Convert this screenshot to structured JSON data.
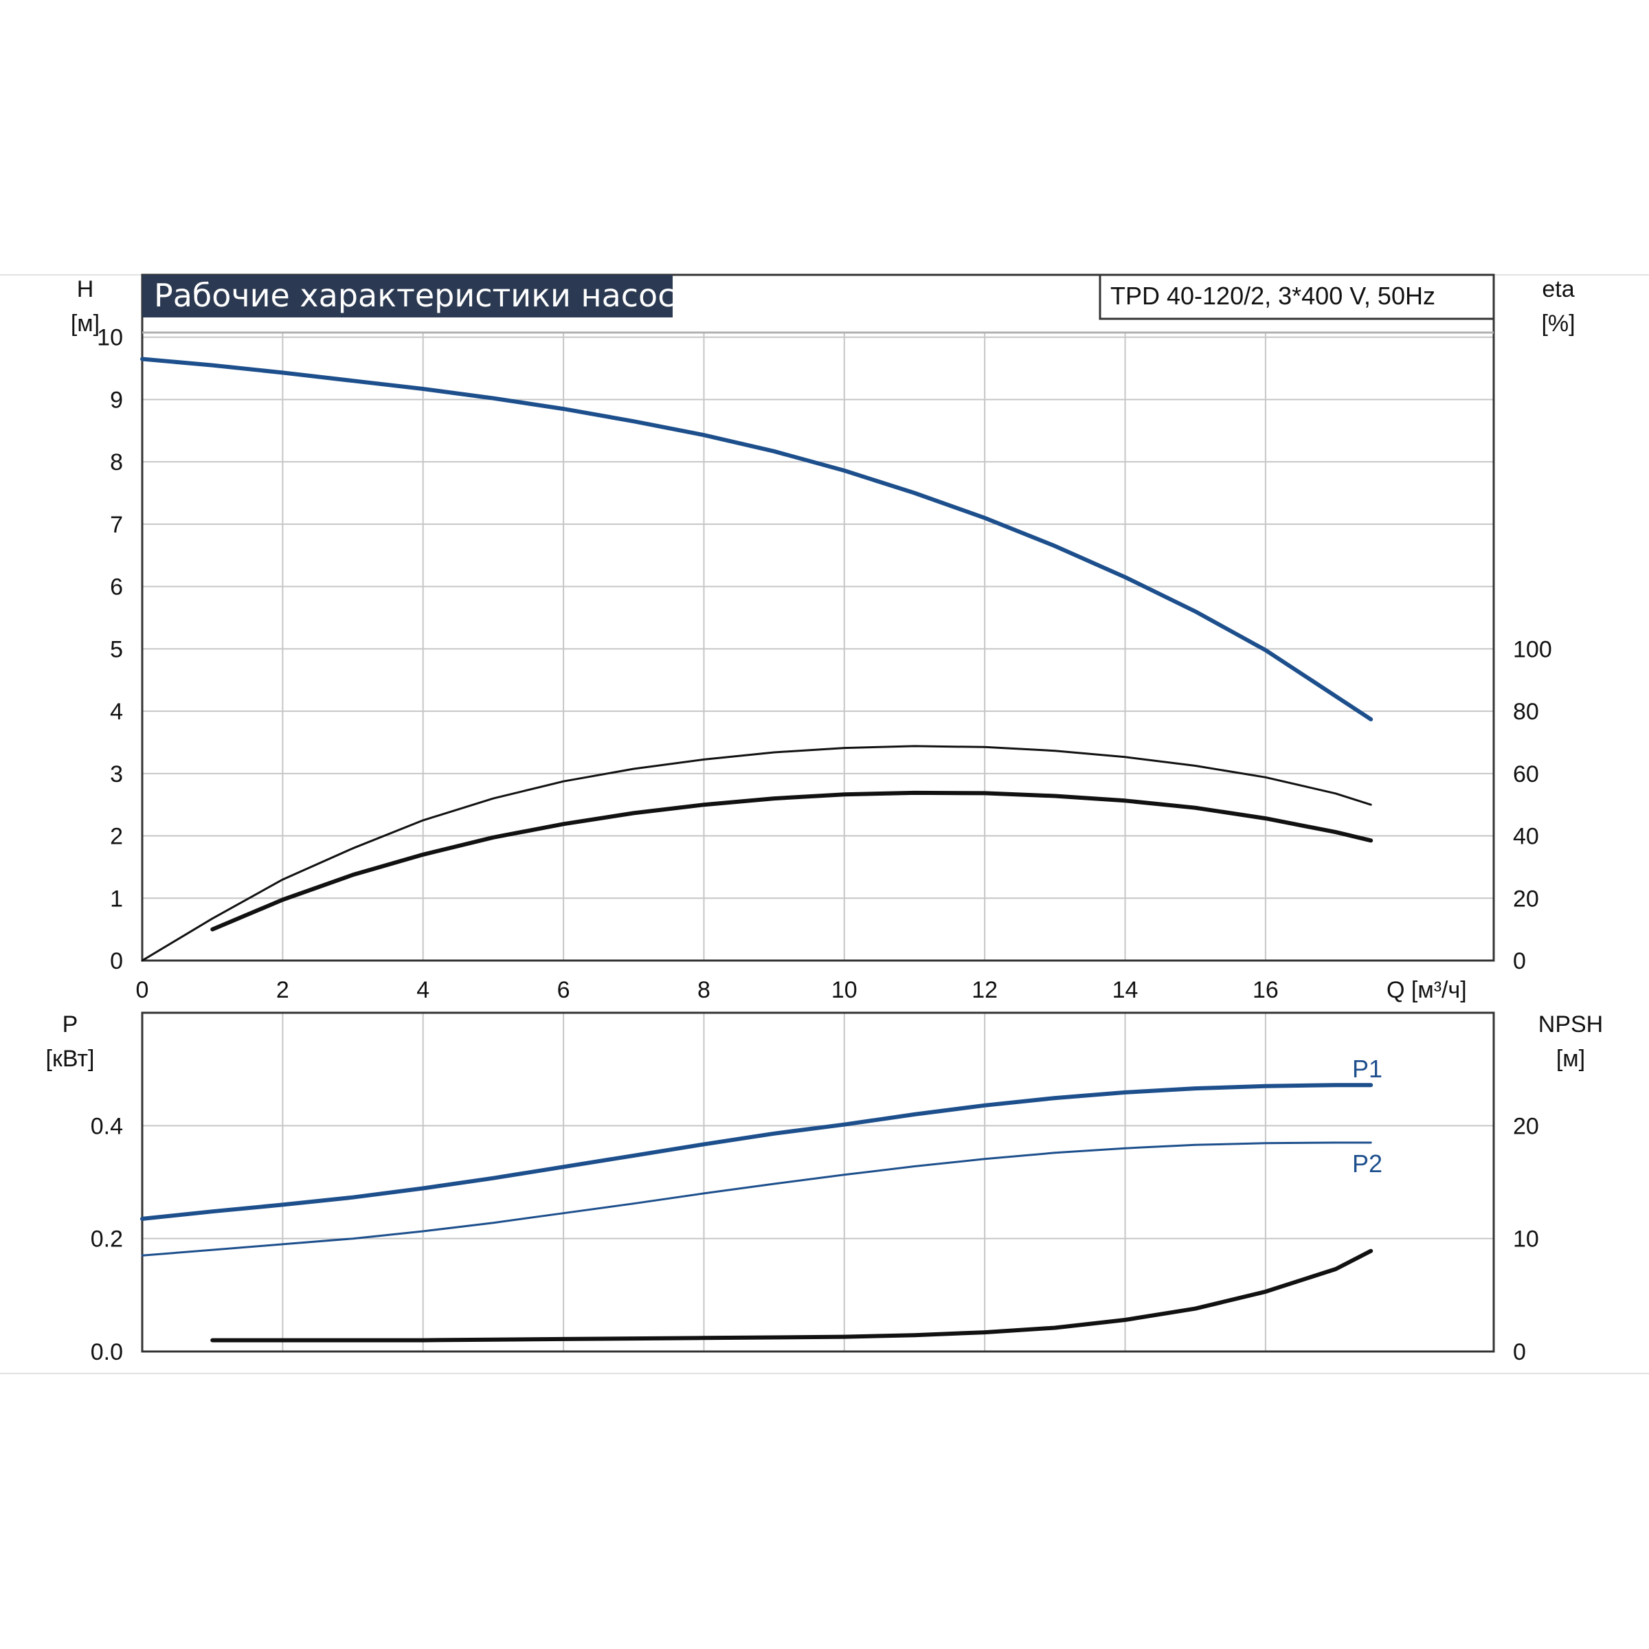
{
  "chart_data": [
    {
      "type": "line",
      "title": "Рабочие характеристики насоса",
      "subtitle": "TPD 40-120/2, 3*400 V, 50Hz",
      "xlabel": "Q [м³/ч]",
      "xlim": [
        0,
        19.25
      ],
      "xticks": [
        0,
        2,
        4,
        6,
        8,
        10,
        12,
        14,
        16
      ],
      "ylabel_left": [
        "H",
        "[м]"
      ],
      "ylim_left": [
        0,
        11
      ],
      "yticks_left": [
        0,
        1,
        2,
        3,
        4,
        5,
        6,
        7,
        8,
        9,
        10
      ],
      "ylabel_right": [
        "eta",
        "[%]"
      ],
      "ylim_right": [
        0,
        220
      ],
      "yticks_right": [
        0,
        20,
        40,
        60,
        80,
        100
      ],
      "grid": true,
      "series": [
        {
          "axis": "left",
          "color": "#1d4f8c",
          "width": 6,
          "x": [
            0,
            1,
            2,
            3,
            4,
            5,
            6,
            7,
            8,
            9,
            10,
            11,
            12,
            13,
            14,
            15,
            16,
            17.5
          ],
          "y": [
            9.65,
            9.55,
            9.43,
            9.3,
            9.17,
            9.02,
            8.85,
            8.65,
            8.43,
            8.17,
            7.86,
            7.5,
            7.1,
            6.65,
            6.15,
            5.6,
            4.98,
            3.87
          ]
        },
        {
          "axis": "right",
          "color": "#111111",
          "width": 3,
          "x": [
            0,
            1,
            2,
            3,
            4,
            5,
            6,
            7,
            8,
            9,
            10,
            11,
            12,
            13,
            14,
            15,
            16,
            17,
            17.5
          ],
          "y": [
            0,
            13.5,
            26,
            36,
            45,
            52,
            57.5,
            61.5,
            64.5,
            66.8,
            68.2,
            68.8,
            68.5,
            67.3,
            65.3,
            62.5,
            58.8,
            53.6,
            50
          ]
        },
        {
          "axis": "right",
          "color": "#111111",
          "width": 6,
          "x": [
            1,
            2,
            3,
            4,
            5,
            6,
            7,
            8,
            9,
            10,
            11,
            12,
            13,
            14,
            15,
            16,
            17,
            17.5
          ],
          "y": [
            10,
            19.5,
            27.5,
            34,
            39.5,
            43.8,
            47.3,
            50,
            52,
            53.3,
            53.8,
            53.7,
            52.8,
            51.3,
            49,
            45.6,
            41.2,
            38.5
          ]
        }
      ]
    },
    {
      "type": "line",
      "xlim": [
        0,
        19.25
      ],
      "xticks": [
        0,
        2,
        4,
        6,
        8,
        10,
        12,
        14,
        16
      ],
      "ylabel_left": [
        "P",
        "[кВт]"
      ],
      "ylim_left": [
        0,
        0.6
      ],
      "yticks_left": [
        "0.0",
        "0.2",
        "0.4"
      ],
      "ylabel_right": [
        "NPSH",
        "[м]"
      ],
      "ylim_right": [
        0,
        30
      ],
      "yticks_right": [
        0,
        10,
        20
      ],
      "grid": true,
      "series": [
        {
          "name": "P1",
          "axis": "left",
          "color": "#1d4f8c",
          "width": 6,
          "x": [
            0,
            1,
            2,
            3,
            4,
            5,
            6,
            7,
            8,
            9,
            10,
            11,
            12,
            13,
            14,
            15,
            16,
            17,
            17.5
          ],
          "y": [
            0.235,
            0.248,
            0.26,
            0.273,
            0.289,
            0.307,
            0.327,
            0.347,
            0.367,
            0.386,
            0.402,
            0.42,
            0.436,
            0.449,
            0.459,
            0.466,
            0.47,
            0.472,
            0.472
          ]
        },
        {
          "name": "P2",
          "axis": "left",
          "color": "#1d4f8c",
          "width": 3,
          "x": [
            0,
            1,
            2,
            3,
            4,
            5,
            6,
            7,
            8,
            9,
            10,
            11,
            12,
            13,
            14,
            15,
            16,
            17,
            17.5
          ],
          "y": [
            0.17,
            0.18,
            0.19,
            0.2,
            0.213,
            0.228,
            0.245,
            0.262,
            0.28,
            0.297,
            0.313,
            0.328,
            0.341,
            0.352,
            0.36,
            0.366,
            0.369,
            0.37,
            0.37
          ]
        },
        {
          "axis": "right",
          "color": "#111111",
          "width": 6,
          "x": [
            1,
            2,
            3,
            4,
            5,
            6,
            7,
            8,
            9,
            10,
            11,
            12,
            13,
            14,
            15,
            16,
            17,
            17.5
          ],
          "y": [
            1,
            1,
            1,
            1,
            1.05,
            1.1,
            1.15,
            1.2,
            1.25,
            1.3,
            1.45,
            1.7,
            2.1,
            2.8,
            3.8,
            5.3,
            7.3,
            8.9
          ]
        }
      ]
    }
  ]
}
